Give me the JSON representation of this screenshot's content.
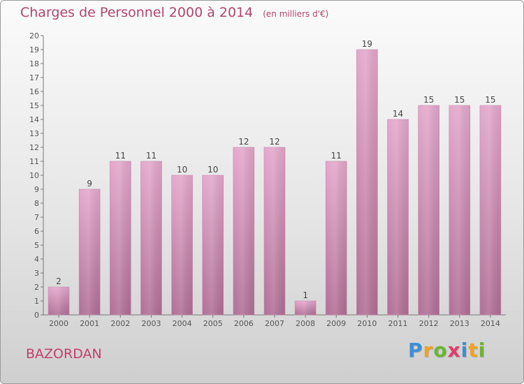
{
  "header": {
    "title": "Charges de Personnel 2000 à 2014",
    "unit": "(en milliers d'€)"
  },
  "location": "BAZORDAN",
  "logo": {
    "letters": [
      {
        "ch": "P",
        "color": "#3d8fd4"
      },
      {
        "ch": "r",
        "color": "#f2a11f"
      },
      {
        "ch": "o",
        "color": "#6bb534"
      },
      {
        "ch": "x",
        "color": "#e23b6b"
      },
      {
        "ch": "i",
        "color": "#3d8fd4"
      },
      {
        "ch": "t",
        "color": "#f2a11f"
      },
      {
        "ch": "i",
        "color": "#6bb534"
      }
    ]
  },
  "colors": {
    "bar_top": "#e4a8cc",
    "bar_bottom": "#b06f95",
    "title": "#b0456e",
    "axis": "#555555"
  },
  "chart_data": {
    "type": "bar",
    "categories": [
      "2000",
      "2001",
      "2002",
      "2003",
      "2004",
      "2005",
      "2006",
      "2007",
      "2008",
      "2009",
      "2010",
      "2011",
      "2012",
      "2013",
      "2014"
    ],
    "values": [
      2,
      9,
      11,
      11,
      10,
      10,
      12,
      12,
      1,
      11,
      19,
      14,
      15,
      15,
      15
    ],
    "ylim": [
      0,
      20
    ],
    "yticks": [
      0,
      1,
      2,
      3,
      4,
      5,
      6,
      7,
      8,
      9,
      10,
      11,
      12,
      13,
      14,
      15,
      16,
      17,
      18,
      19,
      20
    ],
    "grid": false,
    "data_labels": true
  }
}
